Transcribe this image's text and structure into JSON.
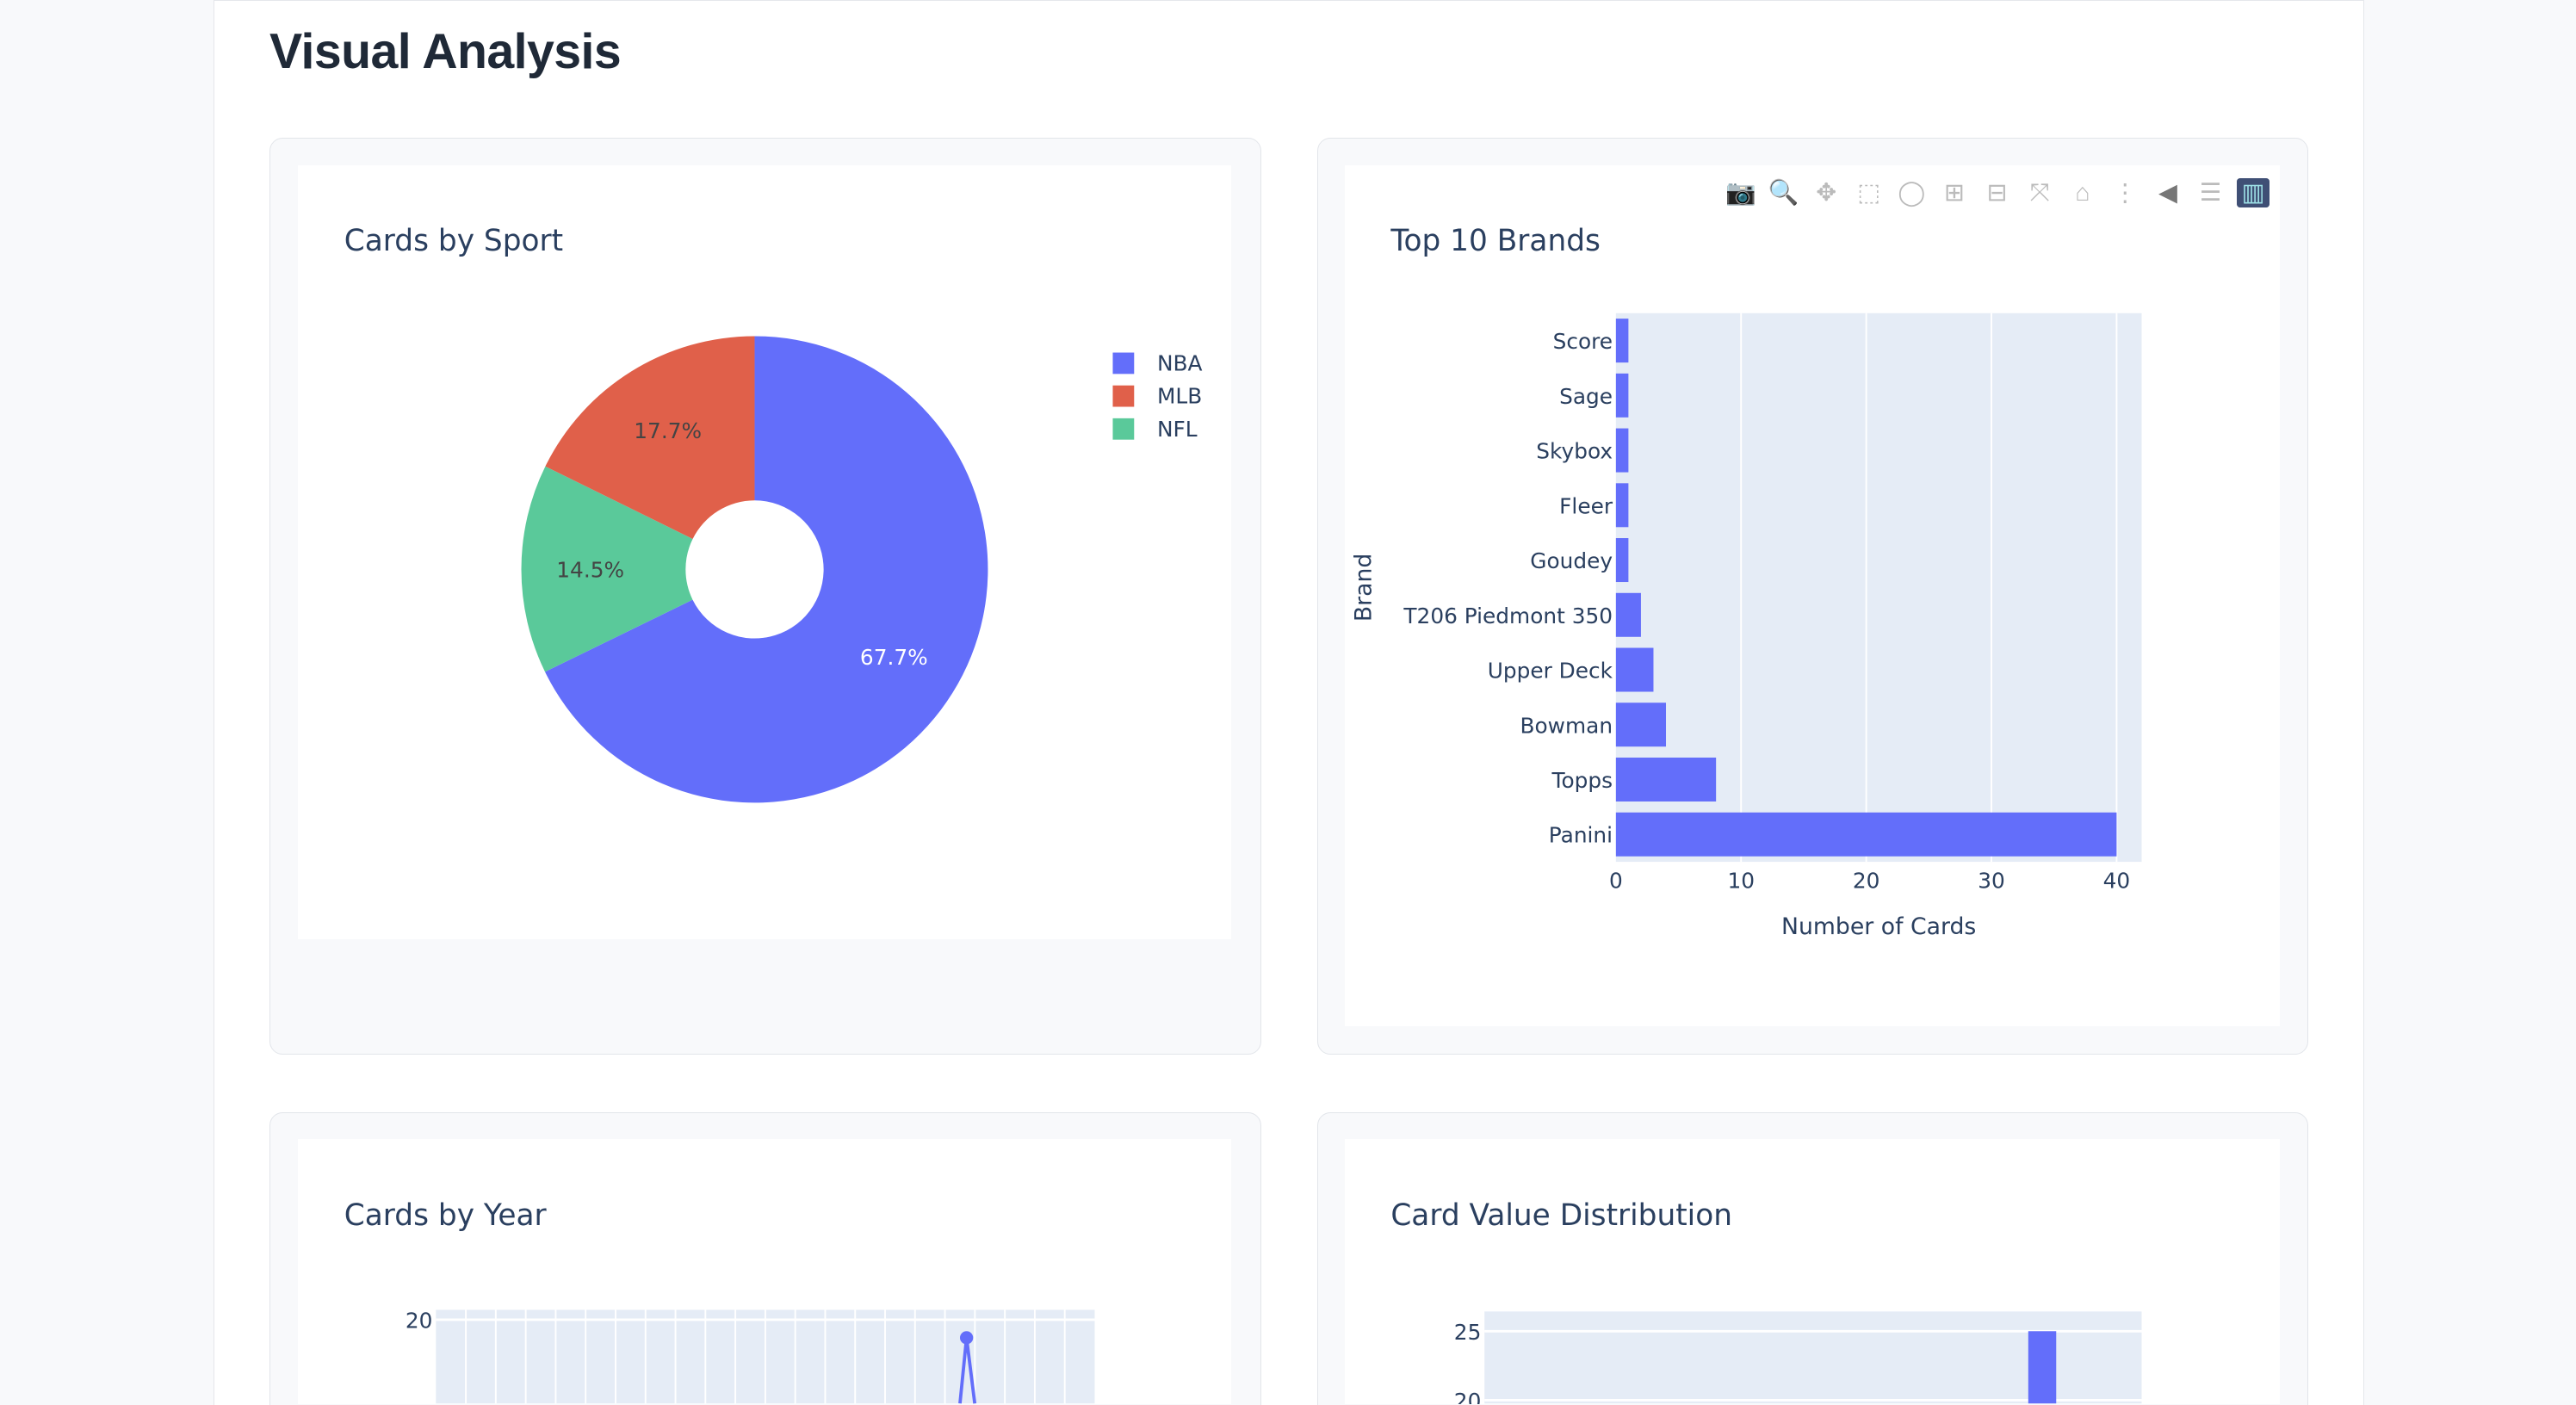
{
  "page": {
    "title": "Visual Analysis"
  },
  "toolbar": {
    "icons": [
      "camera-icon",
      "zoom-icon",
      "pan-icon",
      "box-select-icon",
      "lasso-icon",
      "zoom-in-icon",
      "zoom-out-icon",
      "autoscale-icon",
      "reset-axes-icon",
      "spike-lines-icon",
      "hover-closest-icon",
      "hover-compare-icon",
      "plotly-logo-icon"
    ]
  },
  "colors": {
    "blue": "#636efa",
    "red": "#ef553b",
    "green": "#00cc96",
    "plot_bg": "#e5ecf6",
    "text": "#2a3f5f"
  },
  "chart_data": [
    {
      "type": "pie",
      "title": "Cards by Sport",
      "hole": true,
      "labels": [
        "NBA",
        "MLB",
        "NFL"
      ],
      "values": [
        67.7,
        17.7,
        14.5
      ],
      "text_labels": [
        "67.7%",
        "17.7%",
        "14.5%"
      ],
      "colors": [
        "#636efa",
        "#e0604a",
        "#5ac99a"
      ],
      "legend": "top-right"
    },
    {
      "type": "bar",
      "orientation": "horizontal",
      "title": "Top 10 Brands",
      "xlabel": "Number of Cards",
      "ylabel": "Brand",
      "categories": [
        "Score",
        "Sage",
        "Skybox",
        "Fleer",
        "Goudey",
        "T206 Piedmont 350",
        "Upper Deck",
        "Bowman",
        "Topps",
        "Panini"
      ],
      "values": [
        1,
        1,
        1,
        1,
        1,
        2,
        3,
        4,
        8,
        40
      ],
      "xticks": [
        "0",
        "10",
        "20",
        "30",
        "40"
      ],
      "xlim": [
        0,
        42
      ],
      "grid": true
    },
    {
      "type": "line",
      "title": "Cards by Year",
      "yticks": [
        "20"
      ],
      "visible_peak": 18
    },
    {
      "type": "bar",
      "title": "Card Value Distribution",
      "yticks": [
        "25",
        "20"
      ],
      "visible_peak": 25
    }
  ]
}
